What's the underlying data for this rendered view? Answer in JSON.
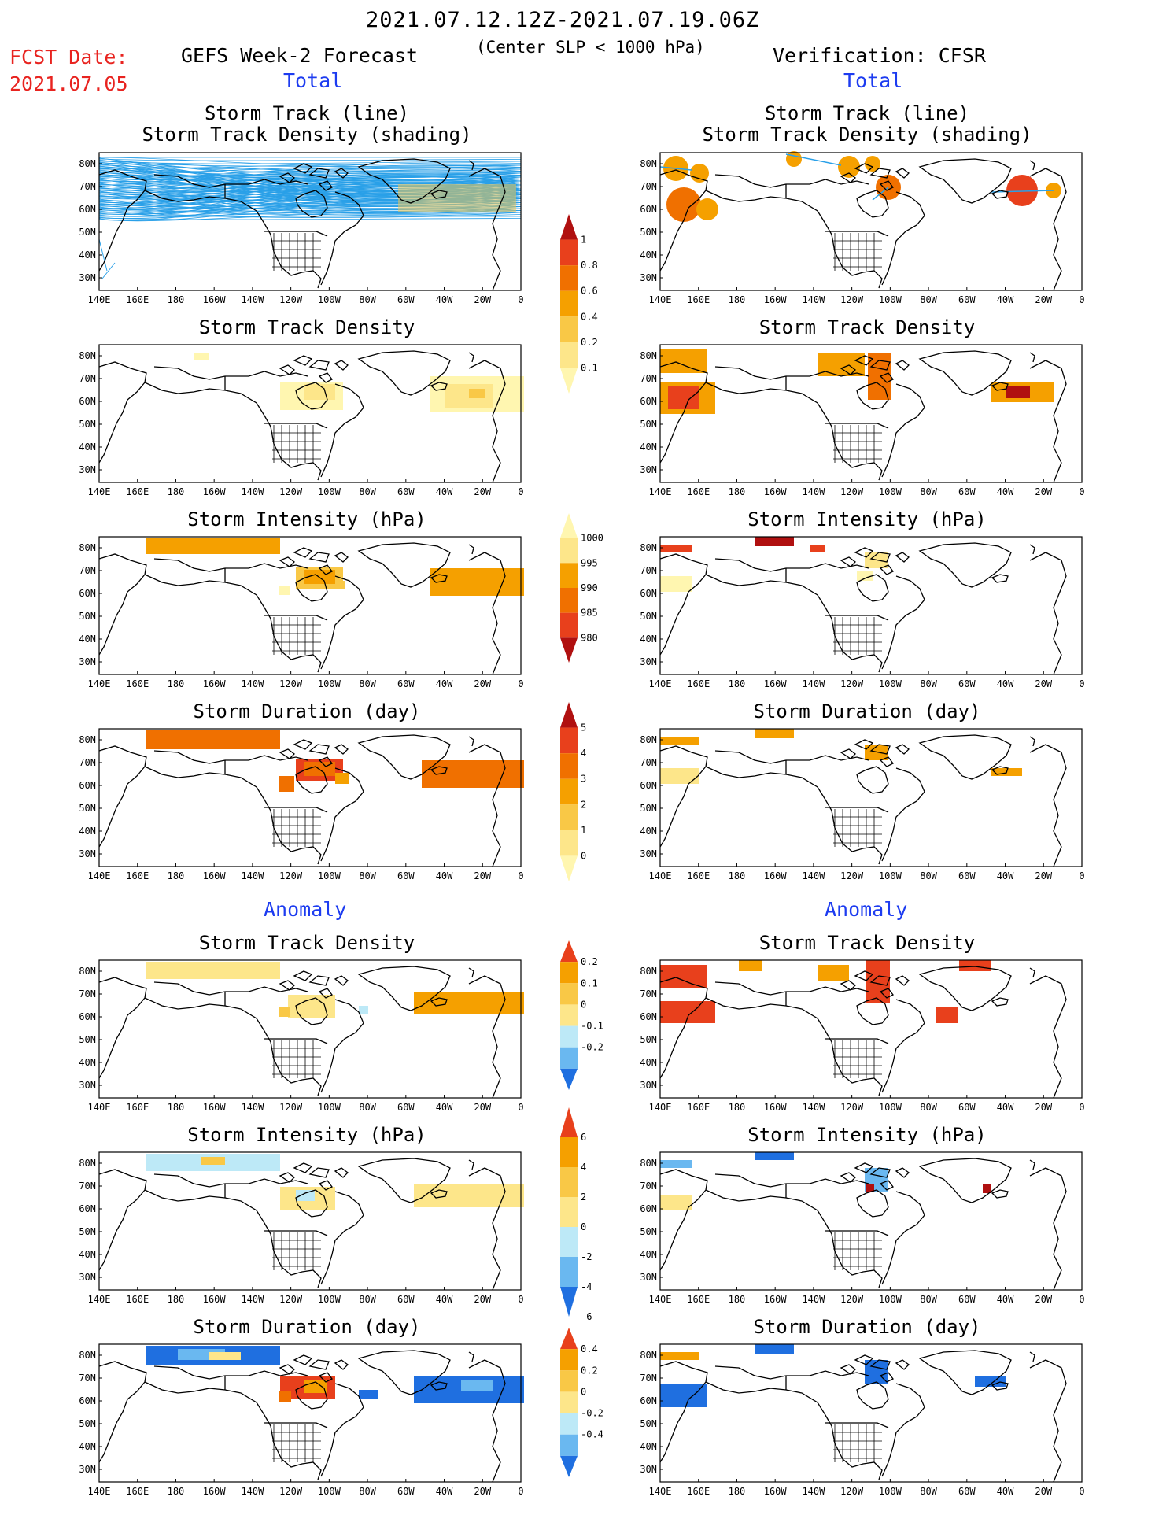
{
  "header": {
    "period": "2021.07.12.12Z-2021.07.19.06Z",
    "criterion": "(Center SLP < 1000 hPa)",
    "fcst_label": "FCST Date:",
    "fcst_date": "2021.07.05",
    "forecast_title": "GEFS Week-2 Forecast",
    "verification_title": "Verification: CFSR",
    "total_left": "Total",
    "total_right": "Total",
    "anomaly_left": "Anomaly",
    "anomaly_right": "Anomaly"
  },
  "axes": {
    "lon_labels": [
      "140E",
      "160E",
      "180",
      "160W",
      "140W",
      "120W",
      "100W",
      "80W",
      "60W",
      "40W",
      "20W",
      "0"
    ],
    "lat_labels": [
      "80N",
      "70N",
      "60N",
      "50N",
      "40N",
      "30N"
    ]
  },
  "panels": {
    "track_title_1": "Storm Track (line)",
    "track_title_2": "Storm Track Density (shading)",
    "density": "Storm Track Density",
    "intensity": "Storm Intensity (hPa)",
    "duration": "Storm Duration (day)"
  },
  "colorbars": {
    "density": [
      "1",
      "0.8",
      "0.6",
      "0.4",
      "0.2",
      "0.1"
    ],
    "intensity": [
      "1000",
      "995",
      "990",
      "985",
      "980"
    ],
    "duration": [
      "5",
      "4",
      "3",
      "2",
      "1",
      "0"
    ],
    "anom_density": [
      "0.2",
      "0.1",
      "0",
      "-0.1",
      "-0.2"
    ],
    "anom_intensity": [
      "6",
      "4",
      "2",
      "0",
      "-2",
      "-4",
      "-6"
    ],
    "anom_duration": [
      "0.4",
      "0.2",
      "0",
      "-0.2",
      "-0.4"
    ]
  },
  "colors": {
    "track_line": "#2aa0e8",
    "yellow_light": "#fff6b0",
    "yellow": "#fde68a",
    "gold": "#f9c846",
    "orange": "#f5a000",
    "orange_dark": "#f07000",
    "red": "#e8401c",
    "dark_red": "#b01010",
    "light_blue": "#bde9f7",
    "mid_blue": "#6ab8f0",
    "blue": "#1f6fe0"
  }
}
